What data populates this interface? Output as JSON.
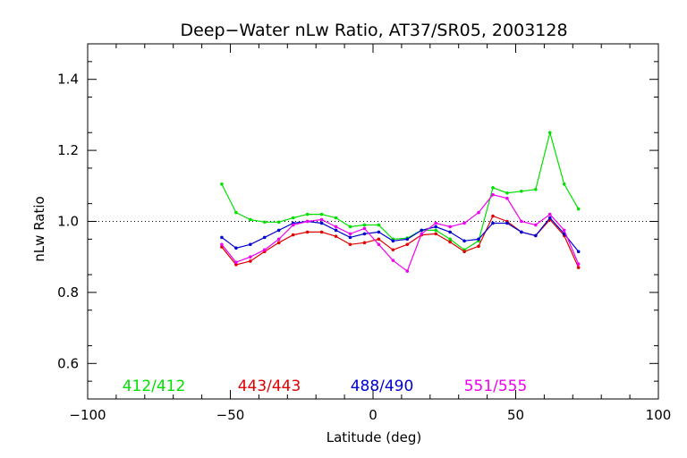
{
  "chart_data": {
    "type": "line",
    "title": "Deep−Water nLw Ratio, AT37/SR05, 2003128",
    "xlabel": "Latitude (deg)",
    "ylabel": "nLw Ratio",
    "xlim": [
      -100,
      100
    ],
    "ylim": [
      0.5,
      1.5
    ],
    "x_ticks": [
      "−100",
      "−50",
      "0",
      "50",
      "100"
    ],
    "y_ticks": [
      "0.6",
      "0.8",
      "1.0",
      "1.2",
      "1.4"
    ],
    "reference_line": 1.0,
    "grid": false,
    "legend_position": "bottom",
    "x": [
      -53,
      -48,
      -43,
      -38,
      -33,
      -28,
      -23,
      -18,
      -13,
      -8,
      -3,
      2,
      7,
      12,
      17,
      22,
      27,
      32,
      37,
      42,
      47,
      52,
      57,
      62,
      67,
      72
    ],
    "series": [
      {
        "name": "412/412",
        "color": "#00e000",
        "values": [
          1.105,
          1.025,
          1.005,
          0.998,
          0.998,
          1.01,
          1.02,
          1.02,
          1.01,
          0.985,
          0.99,
          0.99,
          0.95,
          0.953,
          0.975,
          0.975,
          0.95,
          0.92,
          0.945,
          1.095,
          1.08,
          1.085,
          1.09,
          1.25,
          1.105,
          1.035
        ]
      },
      {
        "name": "443/443",
        "color": "#e00000",
        "values": [
          0.928,
          0.878,
          0.888,
          0.915,
          0.94,
          0.962,
          0.97,
          0.97,
          0.958,
          0.935,
          0.94,
          0.95,
          0.92,
          0.935,
          0.962,
          0.965,
          0.942,
          0.915,
          0.93,
          1.015,
          1.0,
          0.97,
          0.96,
          1.005,
          0.96,
          0.87
        ]
      },
      {
        "name": "488/490",
        "color": "#0000d0",
        "values": [
          0.955,
          0.925,
          0.935,
          0.955,
          0.975,
          0.995,
          1.0,
          0.995,
          0.975,
          0.955,
          0.965,
          0.97,
          0.945,
          0.95,
          0.975,
          0.985,
          0.97,
          0.945,
          0.95,
          0.995,
          0.995,
          0.97,
          0.96,
          1.01,
          0.965,
          0.915
        ]
      },
      {
        "name": "551/555",
        "color": "#f000f0",
        "values": [
          0.935,
          0.885,
          0.9,
          0.92,
          0.95,
          0.99,
          1.0,
          1.005,
          0.985,
          0.965,
          0.98,
          0.935,
          0.89,
          0.86,
          0.965,
          0.995,
          0.985,
          0.995,
          1.025,
          1.075,
          1.065,
          1.0,
          0.99,
          1.02,
          0.975,
          0.88
        ]
      }
    ]
  }
}
